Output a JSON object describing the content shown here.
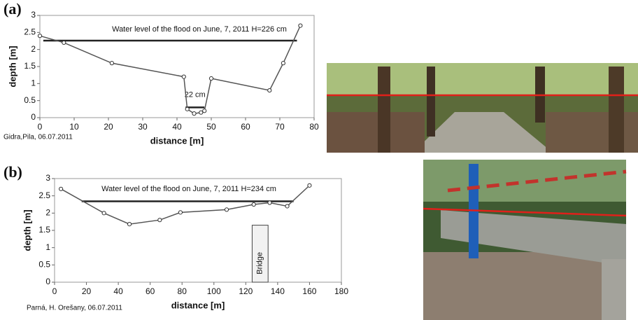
{
  "chart_data": [
    {
      "type": "line",
      "panel_label": "(a)",
      "caption": "Gidra,Pila, 06.07.2011",
      "xlabel": "distance  [m]",
      "ylabel": "depth [m]",
      "annotation": "Water level of the flood on June, 7, 2011  H=226 cm",
      "depth_annotation": "22 cm",
      "x": [
        0,
        7,
        21,
        42,
        43,
        45,
        47,
        48,
        50,
        67,
        71,
        76
      ],
      "series": [
        {
          "color": "#555555",
          "values": [
            2.4,
            2.2,
            1.6,
            1.2,
            0.25,
            0.12,
            0.15,
            0.2,
            1.15,
            0.8,
            1.6,
            2.7
          ]
        }
      ],
      "water_level": {
        "x": [
          1,
          75
        ],
        "y": 2.26,
        "color": "#222222"
      },
      "depth_marker": {
        "x": [
          42.5,
          48
        ],
        "y": 0.3
      },
      "xlim": [
        0,
        80
      ],
      "xticks": [
        0,
        10,
        20,
        30,
        40,
        50,
        60,
        70,
        80
      ],
      "ylim": [
        0,
        3
      ],
      "yticks": [
        0,
        0.5,
        1,
        1.5,
        2,
        2.5,
        3
      ],
      "grid": false
    },
    {
      "type": "line",
      "panel_label": "(b)",
      "caption": "Parná, H. Orešany, 06.07.2011",
      "xlabel": "distance  [m]",
      "ylabel": "depth [m]",
      "annotation": "Water level of the flood on June, 7, 2011  H=234 cm",
      "bridge": {
        "label": "Bridge",
        "x": [
          124,
          134
        ],
        "height": 1.65
      },
      "x": [
        4,
        31,
        47,
        66,
        79,
        108,
        125,
        135,
        146,
        160
      ],
      "series": [
        {
          "color": "#555555",
          "values": [
            2.7,
            2.0,
            1.68,
            1.8,
            2.02,
            2.1,
            2.25,
            2.3,
            2.2,
            2.8
          ]
        }
      ],
      "water_level": {
        "x": [
          17,
          150
        ],
        "y": 2.34,
        "color": "#222222"
      },
      "xlim": [
        0,
        180
      ],
      "xticks": [
        0,
        20,
        40,
        60,
        80,
        100,
        120,
        140,
        160,
        180
      ],
      "ylim": [
        0,
        3
      ],
      "yticks": [
        0,
        0.5,
        1,
        1.5,
        2,
        2.5,
        3
      ],
      "grid": false
    }
  ]
}
